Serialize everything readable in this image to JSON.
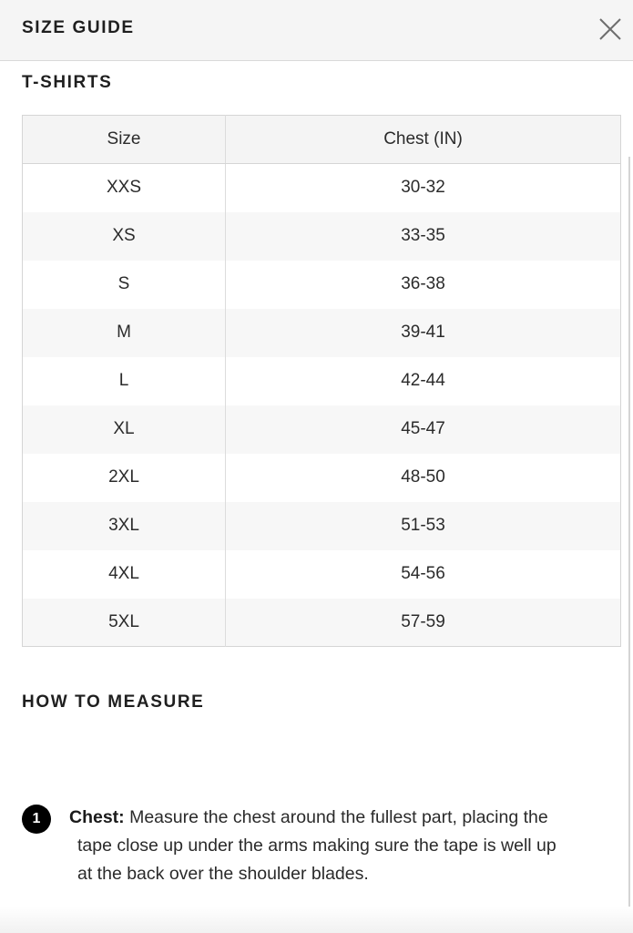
{
  "header": {
    "title": "SIZE GUIDE"
  },
  "sections": {
    "tshirts_title": "T-SHIRTS",
    "measure_title": "HOW TO MEASURE"
  },
  "table": {
    "headers": [
      "Size",
      "Chest (IN)"
    ],
    "rows": [
      [
        "XXS",
        "30-32"
      ],
      [
        "XS",
        "33-35"
      ],
      [
        "S",
        "36-38"
      ],
      [
        "M",
        "39-41"
      ],
      [
        "L",
        "42-44"
      ],
      [
        "XL",
        "45-47"
      ],
      [
        "2XL",
        "48-50"
      ],
      [
        "3XL",
        "51-53"
      ],
      [
        "4XL",
        "54-56"
      ],
      [
        "5XL",
        "57-59"
      ]
    ]
  },
  "measure": {
    "step_number": "1",
    "label": "Chest:",
    "line1": "Measure the chest around the fullest part, placing the",
    "line2": "tape close up under the arms making sure the tape is well up",
    "line3": "at the back over the shoulder blades."
  },
  "icons": {
    "close": "close-icon"
  }
}
